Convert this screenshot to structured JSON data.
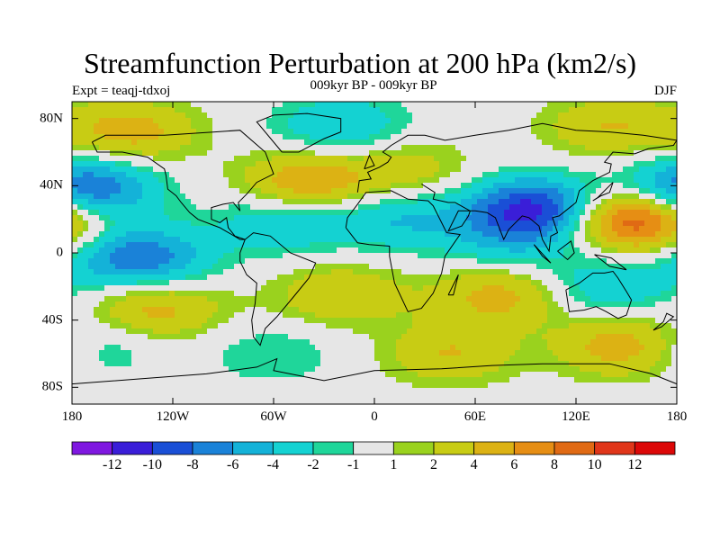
{
  "title": "Streamfunction Perturbation at 200 hPa (km2/s)",
  "subtitle": "009kyr BP - 009kyr BP",
  "left_label": "Expt = teaqj-tdxoj",
  "right_label": "DJF",
  "axes": {
    "x_ticks": [
      {
        "label": "180",
        "lon": -180
      },
      {
        "label": "120W",
        "lon": -120
      },
      {
        "label": "60W",
        "lon": -60
      },
      {
        "label": "0",
        "lon": 0
      },
      {
        "label": "60E",
        "lon": 60
      },
      {
        "label": "120E",
        "lon": 120
      },
      {
        "label": "180",
        "lon": 180
      }
    ],
    "y_ticks": [
      {
        "label": "80N",
        "lat": 80
      },
      {
        "label": "40N",
        "lat": 40
      },
      {
        "label": "0",
        "lat": 0
      },
      {
        "label": "40S",
        "lat": -40
      },
      {
        "label": "80S",
        "lat": -80
      }
    ],
    "lon_range": [
      -180,
      180
    ],
    "lat_range": [
      -90,
      90
    ]
  },
  "colorbar": {
    "colors": [
      "#7f18e0",
      "#3a1ed8",
      "#1a4fd6",
      "#1a82d8",
      "#14b2d8",
      "#14d2d2",
      "#1fd69a",
      "#e6e6e6",
      "#9ad21e",
      "#c8cc14",
      "#dcb214",
      "#e68e14",
      "#e06a14",
      "#e0361a",
      "#dc0808"
    ],
    "labels": [
      {
        "text": "-12",
        "boundary": 1
      },
      {
        "text": "-10",
        "boundary": 2
      },
      {
        "text": "-8",
        "boundary": 3
      },
      {
        "text": "-6",
        "boundary": 4
      },
      {
        "text": "-4",
        "boundary": 5
      },
      {
        "text": "-2",
        "boundary": 6
      },
      {
        "text": "-1",
        "boundary": 7
      },
      {
        "text": "1",
        "boundary": 8
      },
      {
        "text": "2",
        "boundary": 9
      },
      {
        "text": "4",
        "boundary": 10
      },
      {
        "text": "6",
        "boundary": 11
      },
      {
        "text": "8",
        "boundary": 12
      },
      {
        "text": "10",
        "boundary": 13
      },
      {
        "text": "12",
        "boundary": 14
      }
    ]
  },
  "field_features": [
    {
      "name": "pacific-north-low",
      "lon": -172,
      "lat": 38,
      "value": -9
    },
    {
      "name": "nw-pacific-high",
      "lon": 155,
      "lat": 20,
      "value": 11
    },
    {
      "name": "tibet-low",
      "lon": 95,
      "lat": 26,
      "value": -11
    },
    {
      "name": "atlantic-high",
      "lon": -40,
      "lat": 42,
      "value": 6
    },
    {
      "name": "east-pacific-low",
      "lon": -140,
      "lat": -3,
      "value": -8
    },
    {
      "name": "atlantic-tropical-low",
      "lon": -55,
      "lat": 18,
      "value": -4
    },
    {
      "name": "africa-low",
      "lon": 15,
      "lat": 20,
      "value": -4
    },
    {
      "name": "south-pacific-high",
      "lon": -130,
      "lat": -33,
      "value": 5
    },
    {
      "name": "south-atlantic-high",
      "lon": -20,
      "lat": -25,
      "value": 4
    },
    {
      "name": "indian-ocean-high",
      "lon": 75,
      "lat": -25,
      "value": 5
    },
    {
      "name": "australia-low",
      "lon": 140,
      "lat": -20,
      "value": -4
    },
    {
      "name": "southern-ocean-high",
      "lon": 150,
      "lat": -55,
      "value": 6
    },
    {
      "name": "subantarctic-high",
      "lon": 45,
      "lat": -60,
      "value": 4
    },
    {
      "name": "antarctic-low",
      "lon": -60,
      "lat": -60,
      "value": -2
    },
    {
      "name": "arctic-low",
      "lon": -20,
      "lat": 75,
      "value": -4
    },
    {
      "name": "greenland-high",
      "lon": -145,
      "lat": 72,
      "value": 5
    },
    {
      "name": "siberia-high",
      "lon": 140,
      "lat": 75,
      "value": 4
    },
    {
      "name": "europe-high",
      "lon": 20,
      "lat": 50,
      "value": 3
    },
    {
      "name": "southern-pacific-low",
      "lon": -170,
      "lat": -55,
      "value": -3
    },
    {
      "name": "equatorial-indian-low",
      "lon": 80,
      "lat": 5,
      "value": -3
    }
  ]
}
